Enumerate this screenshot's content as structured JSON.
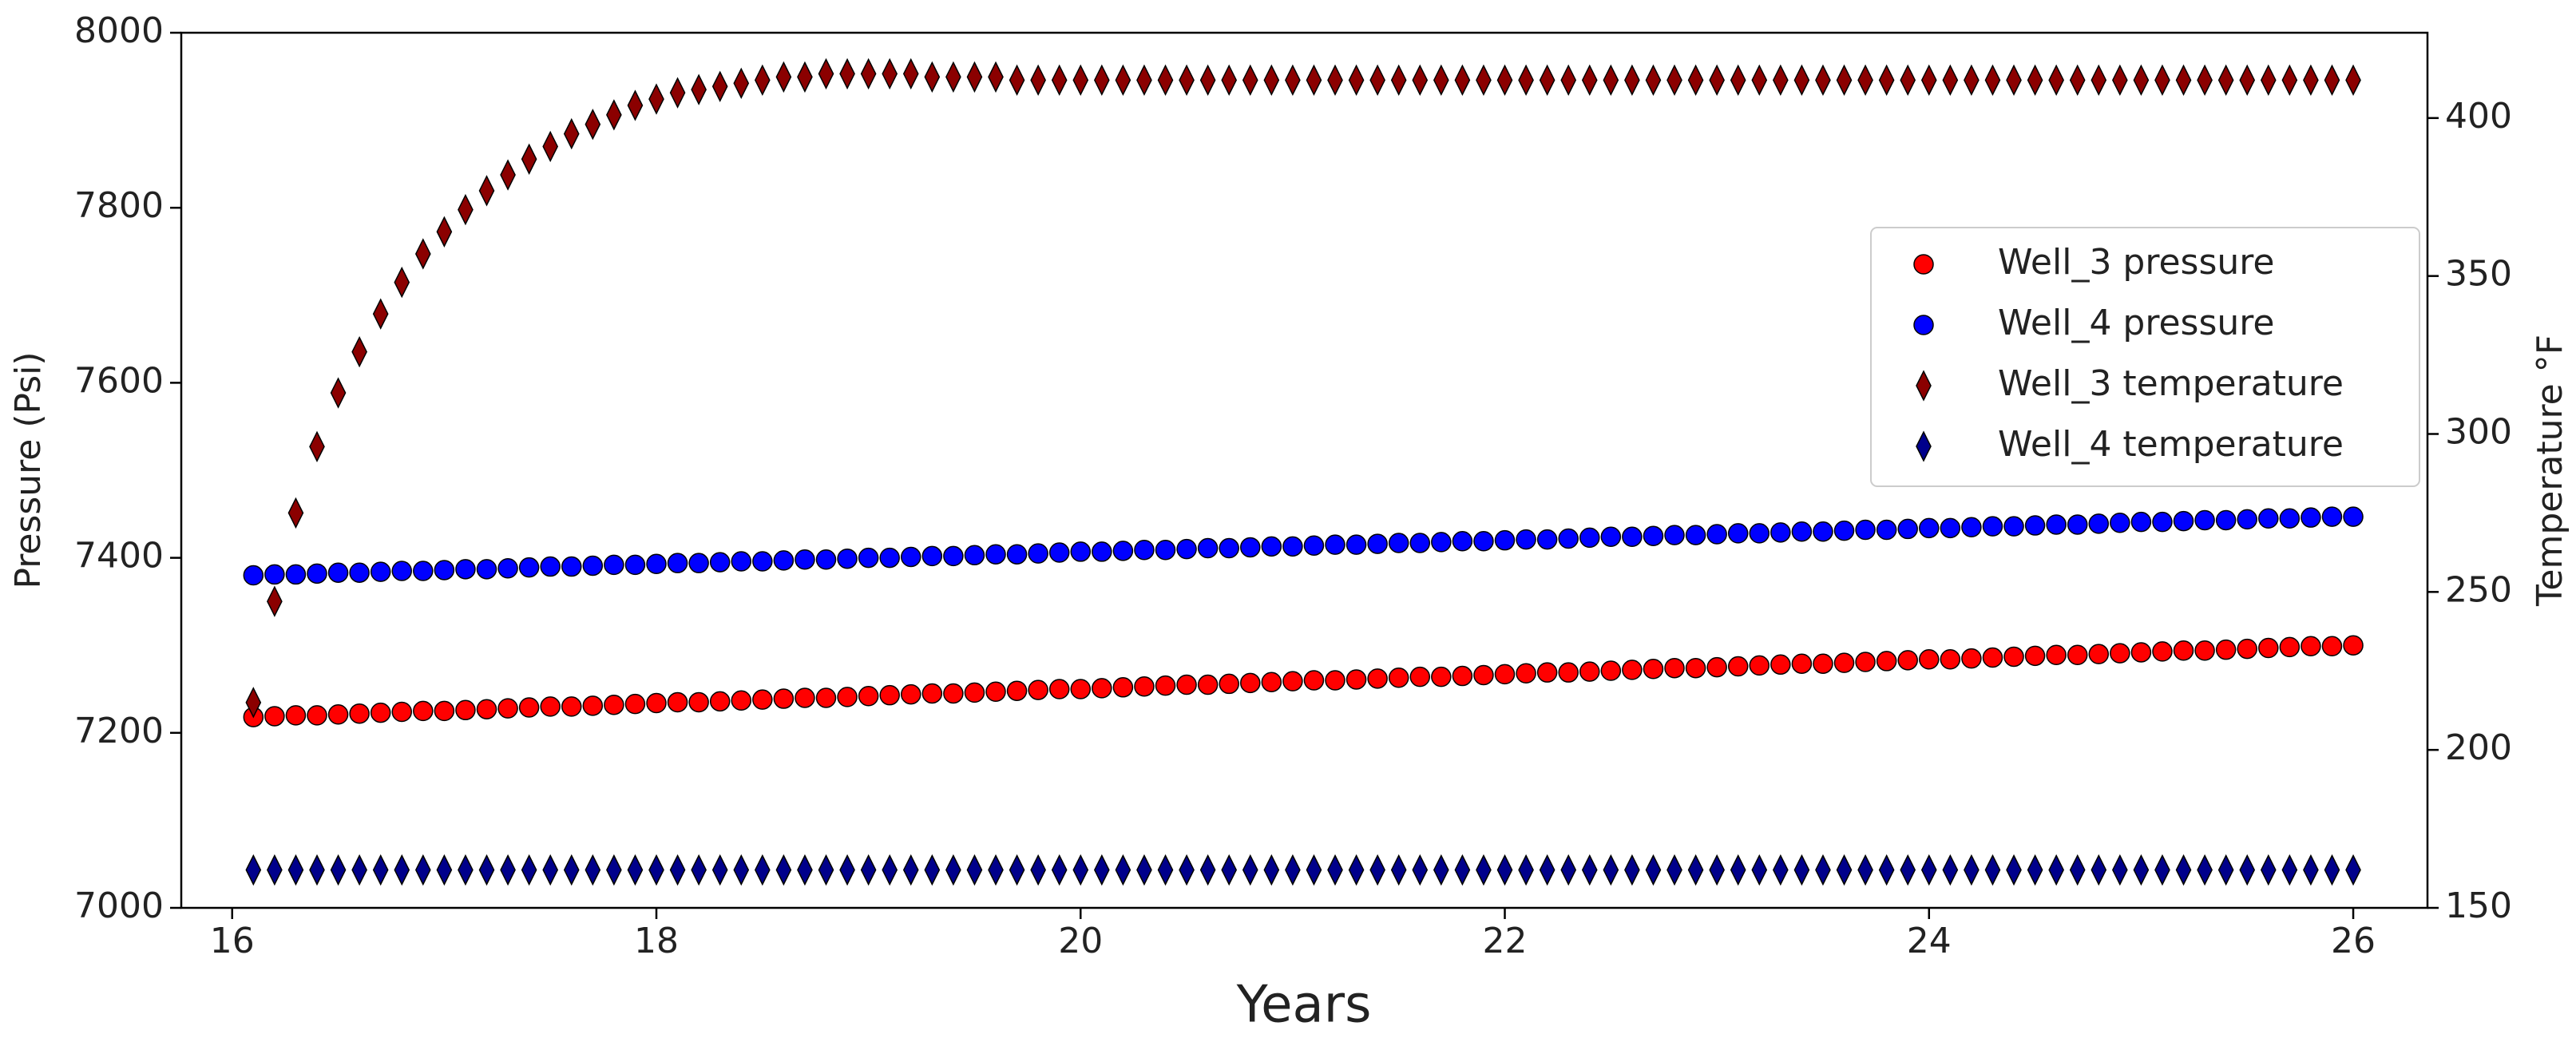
{
  "chart_data": {
    "type": "scatter",
    "xlabel": "Years",
    "ylabel": "Pressure (Psi)",
    "y2label": "Temperature °F",
    "xlim": [
      15.76,
      26.35
    ],
    "xticks": [
      16,
      18,
      20,
      22,
      24,
      26
    ],
    "ylim": [
      7000,
      8000
    ],
    "yticks": [
      7000,
      7200,
      7400,
      7600,
      7800,
      8000
    ],
    "y2lim": [
      150,
      427
    ],
    "y2ticks": [
      150,
      200,
      250,
      300,
      350,
      400
    ],
    "legend": "center right",
    "edgecolor": "#000000",
    "x": [
      16.1,
      16.2,
      16.3,
      16.4,
      16.5,
      16.6,
      16.7,
      16.8,
      16.9,
      17.0,
      17.1,
      17.2,
      17.3,
      17.4,
      17.5,
      17.6,
      17.7,
      17.8,
      17.9,
      18.0,
      18.1,
      18.2,
      18.3,
      18.4,
      18.5,
      18.6,
      18.7,
      18.8,
      18.9,
      19.0,
      19.1,
      19.2,
      19.3,
      19.4,
      19.5,
      19.6,
      19.7,
      19.8,
      19.9,
      20.0,
      20.1,
      20.2,
      20.3,
      20.4,
      20.5,
      20.6,
      20.7,
      20.8,
      20.9,
      21.0,
      21.1,
      21.2,
      21.3,
      21.4,
      21.5,
      21.6,
      21.7,
      21.8,
      21.9,
      22.0,
      22.1,
      22.2,
      22.3,
      22.4,
      22.5,
      22.6,
      22.7,
      22.8,
      22.9,
      23.0,
      23.1,
      23.2,
      23.3,
      23.4,
      23.5,
      23.6,
      23.7,
      23.8,
      23.9,
      24.0,
      24.1,
      24.2,
      24.3,
      24.4,
      24.5,
      24.6,
      24.7,
      24.8,
      24.9,
      25.0,
      25.1,
      25.2,
      25.3,
      25.4,
      25.5,
      25.6,
      25.7,
      25.8,
      25.9,
      26.0
    ],
    "series": [
      {
        "name": "Well_3 pressure",
        "color": "#ff0000",
        "marker": "circle",
        "values": [
          7218,
          7219,
          7220,
          7220,
          7221,
          7222,
          7223,
          7224,
          7225,
          7225,
          7226,
          7227,
          7228,
          7229,
          7230,
          7230,
          7231,
          7232,
          7233,
          7234,
          7235,
          7235,
          7236,
          7237,
          7238,
          7239,
          7240,
          7240,
          7241,
          7242,
          7243,
          7244,
          7245,
          7245,
          7246,
          7247,
          7248,
          7249,
          7250,
          7250,
          7251,
          7252,
          7253,
          7254,
          7255,
          7255,
          7256,
          7257,
          7258,
          7259,
          7260,
          7260,
          7261,
          7262,
          7263,
          7264,
          7264,
          7265,
          7266,
          7267,
          7268,
          7269,
          7269,
          7270,
          7271,
          7272,
          7273,
          7274,
          7274,
          7275,
          7276,
          7277,
          7278,
          7279,
          7279,
          7280,
          7281,
          7282,
          7283,
          7284,
          7284,
          7285,
          7286,
          7287,
          7288,
          7289,
          7289,
          7290,
          7291,
          7292,
          7293,
          7294,
          7294,
          7295,
          7296,
          7297,
          7298,
          7299,
          7299,
          7300
        ]
      },
      {
        "name": "Well_4 pressure",
        "color": "#0000ff",
        "marker": "circle",
        "values": [
          7380,
          7381,
          7381,
          7382,
          7383,
          7383,
          7384,
          7385,
          7385,
          7386,
          7387,
          7387,
          7388,
          7389,
          7390,
          7390,
          7391,
          7392,
          7392,
          7393,
          7394,
          7394,
          7395,
          7396,
          7396,
          7397,
          7398,
          7398,
          7399,
          7400,
          7400,
          7401,
          7402,
          7402,
          7403,
          7404,
          7404,
          7405,
          7406,
          7407,
          7407,
          7408,
          7409,
          7409,
          7410,
          7411,
          7411,
          7412,
          7413,
          7413,
          7414,
          7415,
          7415,
          7416,
          7417,
          7417,
          7418,
          7419,
          7419,
          7420,
          7421,
          7421,
          7422,
          7423,
          7424,
          7424,
          7425,
          7426,
          7426,
          7427,
          7428,
          7428,
          7429,
          7430,
          7430,
          7431,
          7432,
          7432,
          7433,
          7434,
          7434,
          7435,
          7436,
          7436,
          7437,
          7438,
          7438,
          7439,
          7440,
          7441,
          7441,
          7442,
          7443,
          7443,
          7444,
          7445,
          7445,
          7446,
          7447,
          7447
        ]
      },
      {
        "name": "Well_3 temperature",
        "color": "#8b0000",
        "marker": "diamond",
        "axis": "y2",
        "values": [
          215,
          247,
          275,
          296,
          313,
          326,
          338,
          348,
          357,
          364,
          371,
          377,
          382,
          387,
          391,
          395,
          398,
          401,
          404,
          406,
          408,
          409,
          410,
          411,
          412,
          413,
          413,
          414,
          414,
          414,
          414,
          414,
          413,
          413,
          413,
          413,
          412,
          412,
          412,
          412,
          412,
          412,
          412,
          412,
          412,
          412,
          412,
          412,
          412,
          412,
          412,
          412,
          412,
          412,
          412,
          412,
          412,
          412,
          412,
          412,
          412,
          412,
          412,
          412,
          412,
          412,
          412,
          412,
          412,
          412,
          412,
          412,
          412,
          412,
          412,
          412,
          412,
          412,
          412,
          412,
          412,
          412,
          412,
          412,
          412,
          412,
          412,
          412,
          412,
          412,
          412,
          412,
          412,
          412,
          412,
          412,
          412,
          412,
          412,
          412
        ]
      },
      {
        "name": "Well_4 temperature",
        "color": "#00008b",
        "marker": "diamond",
        "axis": "y2",
        "values": [
          162,
          162,
          162,
          162,
          162,
          162,
          162,
          162,
          162,
          162,
          162,
          162,
          162,
          162,
          162,
          162,
          162,
          162,
          162,
          162,
          162,
          162,
          162,
          162,
          162,
          162,
          162,
          162,
          162,
          162,
          162,
          162,
          162,
          162,
          162,
          162,
          162,
          162,
          162,
          162,
          162,
          162,
          162,
          162,
          162,
          162,
          162,
          162,
          162,
          162,
          162,
          162,
          162,
          162,
          162,
          162,
          162,
          162,
          162,
          162,
          162,
          162,
          162,
          162,
          162,
          162,
          162,
          162,
          162,
          162,
          162,
          162,
          162,
          162,
          162,
          162,
          162,
          162,
          162,
          162,
          162,
          162,
          162,
          162,
          162,
          162,
          162,
          162,
          162,
          162,
          162,
          162,
          162,
          162,
          162,
          162,
          162,
          162,
          162,
          162
        ]
      }
    ]
  }
}
